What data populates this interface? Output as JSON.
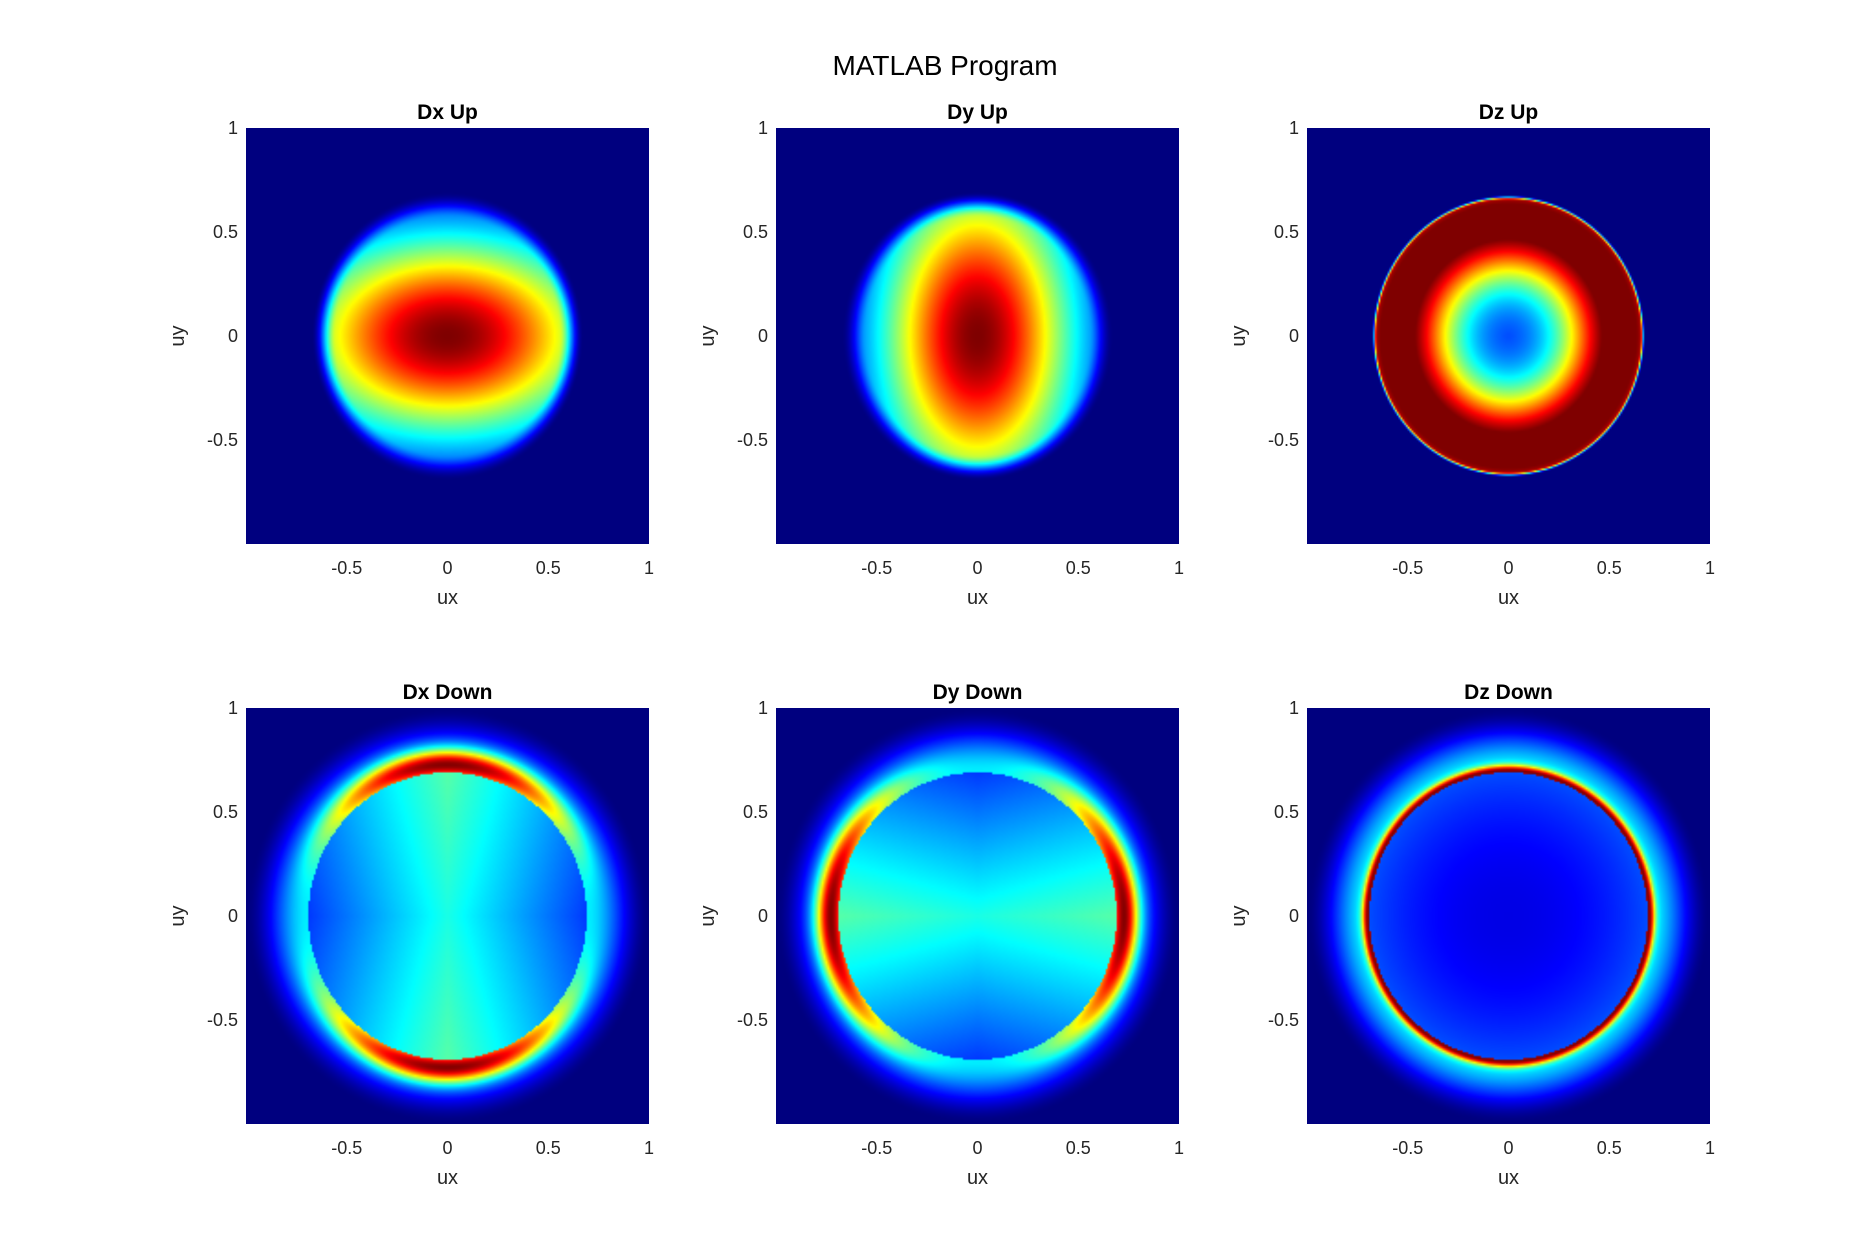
{
  "figure": {
    "title": "MATLAB Program"
  },
  "colormap": {
    "name": "jet",
    "stops": [
      "#00007f",
      "#0000ff",
      "#007fff",
      "#00ffff",
      "#7fff7f",
      "#ffff00",
      "#ff7f00",
      "#ff0000",
      "#7f0000"
    ]
  },
  "chart_data": [
    {
      "type": "heatmap",
      "id": "dx-up",
      "title": "Dx Up",
      "xlabel": "ux",
      "ylabel": "uy",
      "xlim": [
        -1,
        1
      ],
      "ylim": [
        -1,
        1
      ],
      "xticks": [
        -0.5,
        0,
        0.5,
        1
      ],
      "xtick_labels": [
        "-0.5",
        "0",
        "0.5",
        "1"
      ],
      "yticks": [
        -0.5,
        0,
        0.5,
        1
      ],
      "ytick_labels": [
        "-0.5",
        "0",
        "0.5",
        "1"
      ],
      "pattern": "ellipse_peak",
      "params": {
        "a": 0.66,
        "b": 0.68,
        "sx": 0.95,
        "sy": 0.6
      }
    },
    {
      "type": "heatmap",
      "id": "dy-up",
      "title": "Dy Up",
      "xlabel": "ux",
      "ylabel": "uy",
      "xlim": [
        -1,
        1
      ],
      "ylim": [
        -1,
        1
      ],
      "xticks": [
        -0.5,
        0,
        0.5,
        1
      ],
      "xtick_labels": [
        "-0.5",
        "0",
        "0.5",
        "1"
      ],
      "yticks": [
        -0.5,
        0,
        0.5,
        1
      ],
      "ytick_labels": [
        "-0.5",
        "0",
        "0.5",
        "1"
      ],
      "pattern": "ellipse_peak",
      "params": {
        "a": 0.66,
        "b": 0.68,
        "sx": 0.6,
        "sy": 0.95
      }
    },
    {
      "type": "heatmap",
      "id": "dz-up",
      "title": "Dz Up",
      "xlabel": "ux",
      "ylabel": "uy",
      "xlim": [
        -1,
        1
      ],
      "ylim": [
        -1,
        1
      ],
      "xticks": [
        -0.5,
        0,
        0.5,
        1
      ],
      "xtick_labels": [
        "-0.5",
        "0",
        "0.5",
        "1"
      ],
      "yticks": [
        -0.5,
        0,
        0.5,
        1
      ],
      "ytick_labels": [
        "-0.5",
        "0",
        "0.5",
        "1"
      ],
      "pattern": "ring_sharp",
      "params": {
        "r0": 0.67
      }
    },
    {
      "type": "heatmap",
      "id": "dx-down",
      "title": "Dx Down",
      "xlabel": "ux",
      "ylabel": "uy",
      "xlim": [
        -1,
        1
      ],
      "ylim": [
        -1,
        1
      ],
      "xticks": [
        -0.5,
        0,
        0.5,
        1
      ],
      "xtick_labels": [
        "-0.5",
        "0",
        "0.5",
        "1"
      ],
      "yticks": [
        -0.5,
        0,
        0.5,
        1
      ],
      "ytick_labels": [
        "-0.5",
        "0",
        "0.5",
        "1"
      ],
      "pattern": "lens_down",
      "params": {
        "axis": "y",
        "r_inner": 0.69,
        "r_outer": 1.0
      }
    },
    {
      "type": "heatmap",
      "id": "dy-down",
      "title": "Dy Down",
      "xlabel": "ux",
      "ylabel": "uy",
      "xlim": [
        -1,
        1
      ],
      "ylim": [
        -1,
        1
      ],
      "xticks": [
        -0.5,
        0,
        0.5,
        1
      ],
      "xtick_labels": [
        "-0.5",
        "0",
        "0.5",
        "1"
      ],
      "yticks": [
        -0.5,
        0,
        0.5,
        1
      ],
      "ytick_labels": [
        "-0.5",
        "0",
        "0.5",
        "1"
      ],
      "pattern": "lens_down",
      "params": {
        "axis": "x",
        "r_inner": 0.69,
        "r_outer": 1.0
      }
    },
    {
      "type": "heatmap",
      "id": "dz-down",
      "title": "Dz Down",
      "xlabel": "ux",
      "ylabel": "uy",
      "xlim": [
        -1,
        1
      ],
      "ylim": [
        -1,
        1
      ],
      "xticks": [
        -0.5,
        0,
        0.5,
        1
      ],
      "xtick_labels": [
        "-0.5",
        "0",
        "0.5",
        "1"
      ],
      "yticks": [
        -0.5,
        0,
        0.5,
        1
      ],
      "ytick_labels": [
        "-0.5",
        "0",
        "0.5",
        "1"
      ],
      "pattern": "ring_down",
      "params": {
        "r0": 0.69,
        "r_outer": 1.0
      }
    }
  ]
}
